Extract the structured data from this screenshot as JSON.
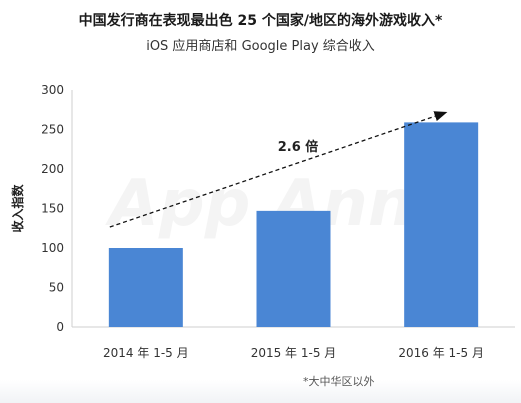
{
  "title": "中国发行商在表现最出色 25 个国家/地区的海外游戏收入*",
  "subtitle": "iOS 应用商店和 Google Play 综合收入",
  "footnote": "*大中华区以外",
  "watermark": "App Annie",
  "colors": {
    "bar": "#4a86d4",
    "axis": "#cfcfcf",
    "arrow": "#111111"
  },
  "chart_data": {
    "type": "bar",
    "categories": [
      "2014 年 1-5 月",
      "2015 年 1-5 月",
      "2016 年 1-5 月"
    ],
    "values": [
      100,
      147,
      259
    ],
    "ylabel": "收入指数",
    "xlabel": "",
    "ylim": [
      0,
      300
    ],
    "yticks": [
      0,
      50,
      100,
      150,
      200,
      250,
      300
    ],
    "grid": false,
    "annotation": {
      "text": "2.6 倍",
      "from_value": 100,
      "to_value": 259
    }
  }
}
